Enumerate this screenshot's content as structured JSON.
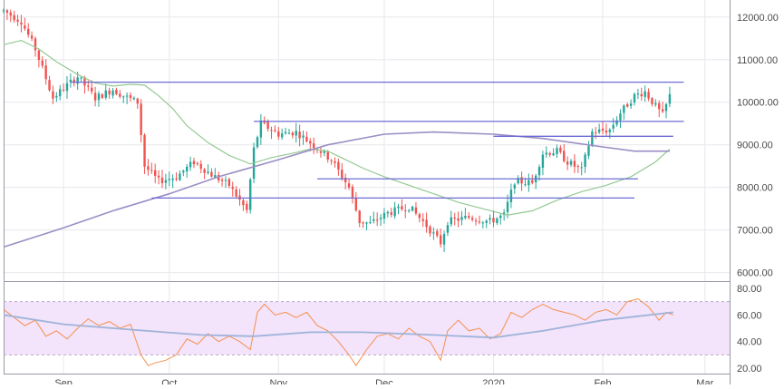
{
  "colors": {
    "up": "#26a69a",
    "down": "#ef5350",
    "sma_fast": "#93c993",
    "sma_slow": "#9b8ec4",
    "levels": "#6b6bd6",
    "rsi": "#f5914e",
    "rsi_ma": "#9fb3d9",
    "rsi_band": "#f3e3fb",
    "grid": "#e8e8ee",
    "axis_text": "#4a4a4a"
  },
  "chart_data": [
    {
      "type": "candlestick",
      "title": "",
      "x_range": [
        "2019-08-15",
        "2020-03-08"
      ],
      "y_range": [
        5800,
        12400
      ],
      "x_tick_labels": [
        "Sep",
        "Oct",
        "Nov",
        "Dec",
        "2020",
        "Feb",
        "Mar"
      ],
      "x_tick_dates": [
        "2019-09-01",
        "2019-10-01",
        "2019-11-01",
        "2019-12-01",
        "2020-01-01",
        "2020-02-01",
        "2020-03-01"
      ],
      "y_ticks": [
        6000,
        7000,
        8000,
        9000,
        10000,
        11000,
        12000
      ],
      "y_tick_labels": [
        "6000.00",
        "7000.00",
        "8000.00",
        "9000.00",
        "10000.00",
        "11000.00",
        "12000.00"
      ],
      "overlays": [
        {
          "kind": "sma_fast",
          "points": [
            [
              "2019-08-15",
              11350
            ],
            [
              "2019-08-20",
              11450
            ],
            [
              "2019-08-25",
              11250
            ],
            [
              "2019-08-30",
              10950
            ],
            [
              "2019-09-05",
              10650
            ],
            [
              "2019-09-10",
              10450
            ],
            [
              "2019-09-15",
              10380
            ],
            [
              "2019-09-20",
              10420
            ],
            [
              "2019-09-24",
              10400
            ],
            [
              "2019-09-28",
              10150
            ],
            [
              "2019-10-02",
              9850
            ],
            [
              "2019-10-06",
              9450
            ],
            [
              "2019-10-12",
              9050
            ],
            [
              "2019-10-18",
              8750
            ],
            [
              "2019-10-24",
              8550
            ],
            [
              "2019-10-30",
              8700
            ],
            [
              "2019-11-05",
              8800
            ],
            [
              "2019-11-10",
              8900
            ],
            [
              "2019-11-15",
              8850
            ],
            [
              "2019-11-20",
              8650
            ],
            [
              "2019-11-25",
              8450
            ],
            [
              "2019-12-01",
              8250
            ],
            [
              "2019-12-08",
              8050
            ],
            [
              "2019-12-15",
              7850
            ],
            [
              "2019-12-22",
              7650
            ],
            [
              "2019-12-29",
              7500
            ],
            [
              "2020-01-05",
              7350
            ],
            [
              "2020-01-12",
              7450
            ],
            [
              "2020-01-19",
              7700
            ],
            [
              "2020-01-26",
              7900
            ],
            [
              "2020-02-02",
              8050
            ],
            [
              "2020-02-09",
              8250
            ],
            [
              "2020-02-16",
              8600
            ],
            [
              "2020-02-20",
              8900
            ]
          ]
        },
        {
          "kind": "sma_slow",
          "points": [
            [
              "2019-08-15",
              6600
            ],
            [
              "2019-09-01",
              7050
            ],
            [
              "2019-09-15",
              7450
            ],
            [
              "2019-10-01",
              7850
            ],
            [
              "2019-10-15",
              8250
            ],
            [
              "2019-11-01",
              8650
            ],
            [
              "2019-11-15",
              9000
            ],
            [
              "2019-12-01",
              9250
            ],
            [
              "2019-12-15",
              9300
            ],
            [
              "2020-01-01",
              9250
            ],
            [
              "2020-01-15",
              9150
            ],
            [
              "2020-02-01",
              8950
            ],
            [
              "2020-02-10",
              8850
            ],
            [
              "2020-02-20",
              8850
            ]
          ]
        }
      ],
      "levels": [
        {
          "price": 10470,
          "from": "2019-09-03",
          "to": "2020-02-24"
        },
        {
          "price": 9550,
          "from": "2019-10-25",
          "to": "2020-02-24"
        },
        {
          "price": 9200,
          "from": "2020-01-01",
          "to": "2020-02-21"
        },
        {
          "price": 8200,
          "from": "2019-11-12",
          "to": "2020-02-11"
        },
        {
          "price": 7750,
          "from": "2019-09-26",
          "to": "2020-02-10"
        }
      ]
    },
    {
      "type": "line",
      "title": "",
      "x_range": [
        "2019-08-15",
        "2020-03-08"
      ],
      "y_range": [
        16,
        84
      ],
      "y_ticks": [
        20,
        40,
        60,
        80
      ],
      "y_tick_labels": [
        "20.00",
        "40.00",
        "60.00",
        "80.00"
      ],
      "bands": [
        30,
        70
      ],
      "series": [
        {
          "kind": "rsi",
          "points": [
            [
              "2019-08-15",
              64
            ],
            [
              "2019-08-18",
              58
            ],
            [
              "2019-08-21",
              52
            ],
            [
              "2019-08-24",
              56
            ],
            [
              "2019-08-27",
              44
            ],
            [
              "2019-08-30",
              48
            ],
            [
              "2019-09-02",
              42
            ],
            [
              "2019-09-05",
              50
            ],
            [
              "2019-09-08",
              57
            ],
            [
              "2019-09-11",
              52
            ],
            [
              "2019-09-14",
              55
            ],
            [
              "2019-09-17",
              50
            ],
            [
              "2019-09-20",
              53
            ],
            [
              "2019-09-23",
              30
            ],
            [
              "2019-09-25",
              22
            ],
            [
              "2019-09-27",
              24
            ],
            [
              "2019-09-30",
              26
            ],
            [
              "2019-10-03",
              30
            ],
            [
              "2019-10-06",
              42
            ],
            [
              "2019-10-09",
              38
            ],
            [
              "2019-10-12",
              46
            ],
            [
              "2019-10-15",
              40
            ],
            [
              "2019-10-18",
              44
            ],
            [
              "2019-10-21",
              40
            ],
            [
              "2019-10-24",
              34
            ],
            [
              "2019-10-26",
              62
            ],
            [
              "2019-10-28",
              68
            ],
            [
              "2019-10-31",
              60
            ],
            [
              "2019-11-03",
              62
            ],
            [
              "2019-11-06",
              58
            ],
            [
              "2019-11-09",
              62
            ],
            [
              "2019-11-12",
              52
            ],
            [
              "2019-11-15",
              48
            ],
            [
              "2019-11-18",
              40
            ],
            [
              "2019-11-21",
              30
            ],
            [
              "2019-11-23",
              22
            ],
            [
              "2019-11-26",
              34
            ],
            [
              "2019-11-29",
              44
            ],
            [
              "2019-12-02",
              46
            ],
            [
              "2019-12-05",
              42
            ],
            [
              "2019-12-08",
              50
            ],
            [
              "2019-12-11",
              44
            ],
            [
              "2019-12-14",
              40
            ],
            [
              "2019-12-17",
              26
            ],
            [
              "2019-12-19",
              48
            ],
            [
              "2019-12-22",
              56
            ],
            [
              "2019-12-25",
              48
            ],
            [
              "2019-12-28",
              50
            ],
            [
              "2019-12-31",
              42
            ],
            [
              "2020-01-03",
              46
            ],
            [
              "2020-01-06",
              62
            ],
            [
              "2020-01-09",
              58
            ],
            [
              "2020-01-12",
              64
            ],
            [
              "2020-01-15",
              68
            ],
            [
              "2020-01-18",
              64
            ],
            [
              "2020-01-21",
              62
            ],
            [
              "2020-01-24",
              60
            ],
            [
              "2020-01-27",
              56
            ],
            [
              "2020-01-30",
              62
            ],
            [
              "2020-02-02",
              64
            ],
            [
              "2020-02-05",
              60
            ],
            [
              "2020-02-08",
              70
            ],
            [
              "2020-02-11",
              72
            ],
            [
              "2020-02-14",
              66
            ],
            [
              "2020-02-17",
              56
            ],
            [
              "2020-02-19",
              62
            ],
            [
              "2020-02-21",
              60
            ]
          ]
        },
        {
          "kind": "rsi_ma",
          "points": [
            [
              "2019-08-15",
              60
            ],
            [
              "2019-09-01",
              53
            ],
            [
              "2019-09-20",
              49
            ],
            [
              "2019-10-10",
              45
            ],
            [
              "2019-10-25",
              44
            ],
            [
              "2019-11-10",
              47
            ],
            [
              "2019-11-25",
              47
            ],
            [
              "2019-12-15",
              45
            ],
            [
              "2020-01-01",
              43
            ],
            [
              "2020-01-15",
              48
            ],
            [
              "2020-02-01",
              56
            ],
            [
              "2020-02-21",
              62
            ]
          ]
        }
      ]
    }
  ]
}
